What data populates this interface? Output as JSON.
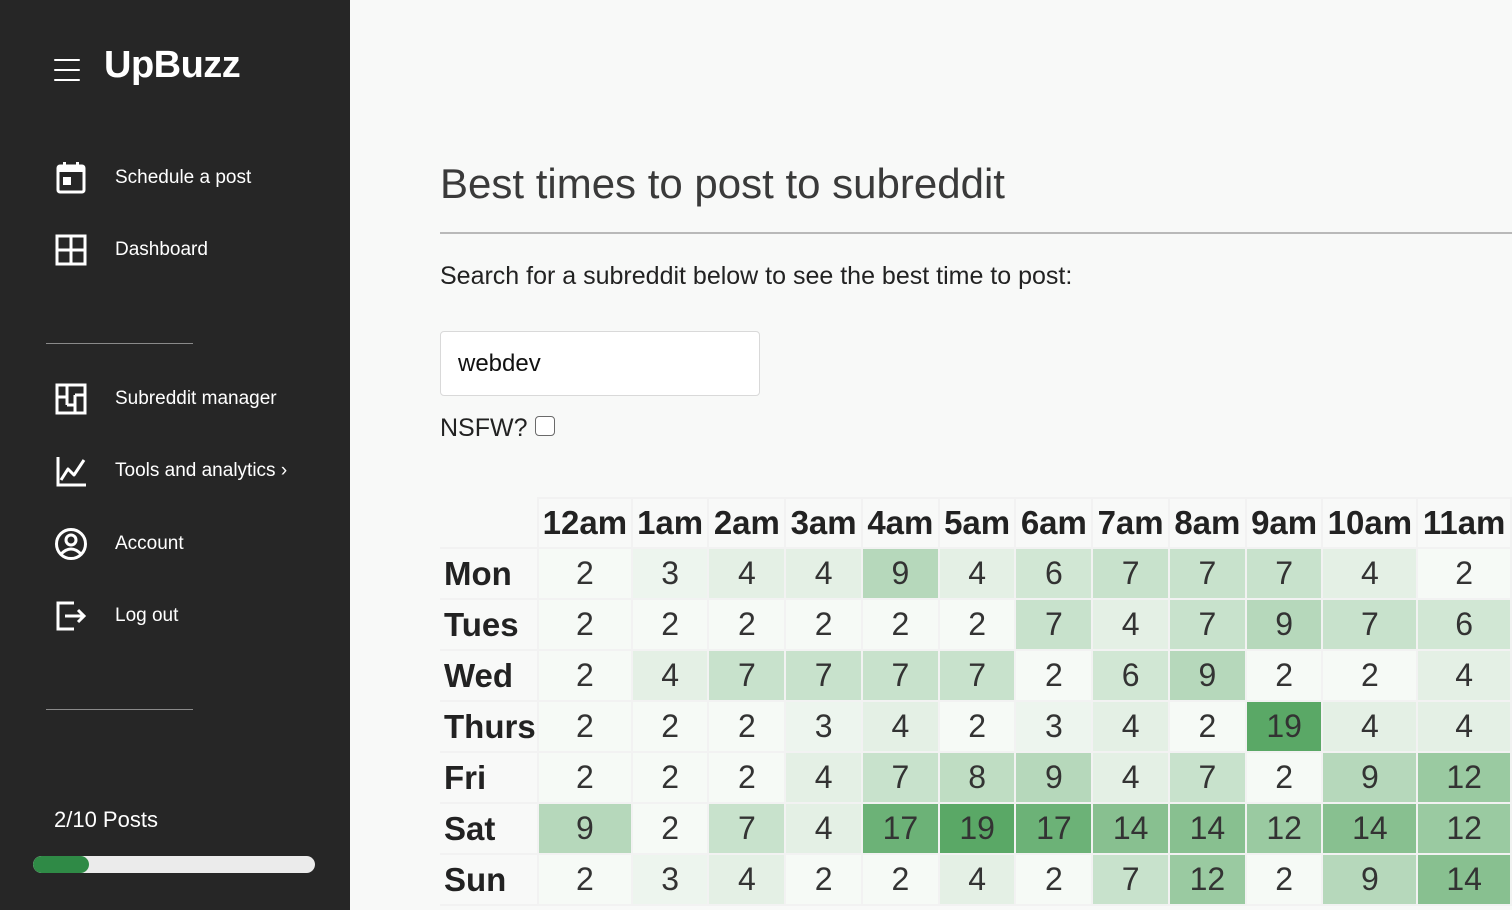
{
  "app": {
    "name": "UpBuzz"
  },
  "sidebar": {
    "items": [
      {
        "key": "schedule",
        "label": "Schedule a post",
        "icon": "calendar-icon"
      },
      {
        "key": "dashboard",
        "label": "Dashboard",
        "icon": "dashboard-grid-icon"
      },
      {
        "key": "subreddit-manager",
        "label": "Subreddit manager",
        "icon": "layout-icon"
      },
      {
        "key": "tools",
        "label": "Tools and analytics ›",
        "icon": "line-chart-icon"
      },
      {
        "key": "account",
        "label": "Account",
        "icon": "user-circle-icon"
      },
      {
        "key": "logout",
        "label": "Log out",
        "icon": "logout-icon"
      }
    ],
    "posts": {
      "label": "2/10 Posts",
      "used": 2,
      "limit": 10,
      "fraction": 0.2
    }
  },
  "main": {
    "title": "Best times to post to subreddit",
    "subtitle": "Search for a subreddit below to see the best time to post:",
    "search": {
      "value": "webdev",
      "placeholder": ""
    },
    "nsfw": {
      "label": "NSFW?",
      "checked": false
    }
  },
  "heatmap": {
    "hours": [
      "12am",
      "1am",
      "2am",
      "3am",
      "4am",
      "5am",
      "6am",
      "7am",
      "8am",
      "9am",
      "10am",
      "11am"
    ],
    "days": [
      {
        "label": "Mon",
        "values": [
          2,
          3,
          4,
          4,
          9,
          4,
          6,
          7,
          7,
          7,
          4,
          2
        ]
      },
      {
        "label": "Tues",
        "values": [
          2,
          2,
          2,
          2,
          2,
          2,
          7,
          4,
          7,
          9,
          7,
          6
        ]
      },
      {
        "label": "Wed",
        "values": [
          2,
          4,
          7,
          7,
          7,
          7,
          2,
          6,
          9,
          2,
          2,
          4
        ]
      },
      {
        "label": "Thurs",
        "values": [
          2,
          2,
          2,
          3,
          4,
          2,
          3,
          4,
          2,
          19,
          4,
          4
        ]
      },
      {
        "label": "Fri",
        "values": [
          2,
          2,
          2,
          4,
          7,
          8,
          9,
          4,
          7,
          2,
          9,
          12
        ]
      },
      {
        "label": "Sat",
        "values": [
          9,
          2,
          7,
          4,
          17,
          19,
          17,
          14,
          14,
          12,
          14,
          12
        ]
      },
      {
        "label": "Sun",
        "values": [
          2,
          3,
          4,
          2,
          2,
          4,
          2,
          7,
          12,
          2,
          9,
          14
        ]
      }
    ],
    "color_scale": {
      "low": "#f6faf6",
      "high": "#5aa866"
    }
  }
}
